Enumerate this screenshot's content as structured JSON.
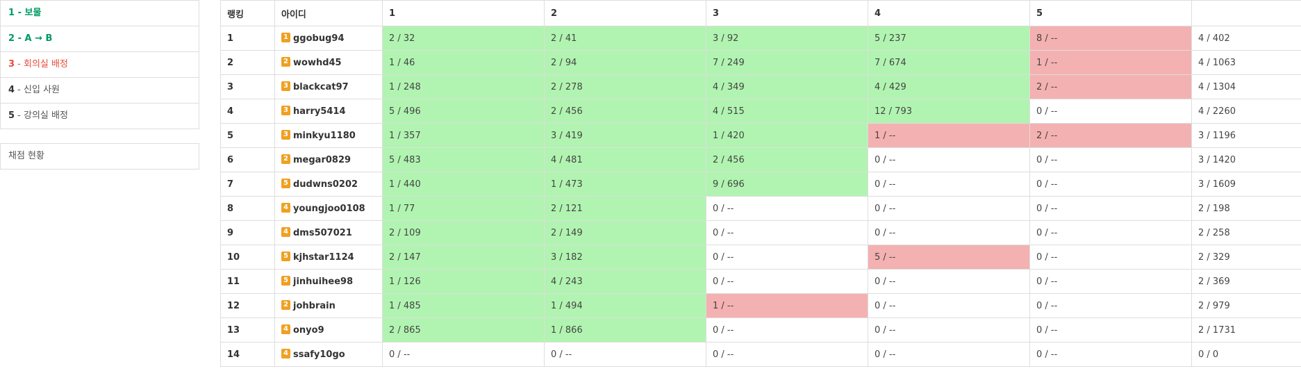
{
  "sidebar": {
    "problems": [
      {
        "num": "1",
        "title": "보물",
        "status": "solved"
      },
      {
        "num": "2",
        "title": "A → B",
        "status": "solved"
      },
      {
        "num": "3",
        "title": "회의실 배정",
        "status": "wrong"
      },
      {
        "num": "4",
        "title": "신입 사원",
        "status": "none"
      },
      {
        "num": "5",
        "title": "강의실 배정",
        "status": "none"
      }
    ],
    "grading_label": "채점 현황"
  },
  "board": {
    "headers": [
      "랭킹",
      "아이디",
      "1",
      "2",
      "3",
      "4",
      "5",
      ""
    ],
    "rows": [
      {
        "rank": "1",
        "tier": "1",
        "user": "ggobug94",
        "cells": [
          [
            "2 / 32",
            "ok"
          ],
          [
            "2 / 41",
            "ok"
          ],
          [
            "3 / 92",
            "ok"
          ],
          [
            "5 / 237",
            "ok"
          ],
          [
            "8 / --",
            "bad"
          ]
        ],
        "total": "4 / 402"
      },
      {
        "rank": "2",
        "tier": "2",
        "user": "wowhd45",
        "cells": [
          [
            "1 / 46",
            "ok"
          ],
          [
            "2 / 94",
            "ok"
          ],
          [
            "7 / 249",
            "ok"
          ],
          [
            "7 / 674",
            "ok"
          ],
          [
            "1 / --",
            "bad"
          ]
        ],
        "total": "4 / 1063"
      },
      {
        "rank": "3",
        "tier": "3",
        "user": "blackcat97",
        "cells": [
          [
            "1 / 248",
            "ok"
          ],
          [
            "2 / 278",
            "ok"
          ],
          [
            "4 / 349",
            "ok"
          ],
          [
            "4 / 429",
            "ok"
          ],
          [
            "2 / --",
            "bad"
          ]
        ],
        "total": "4 / 1304"
      },
      {
        "rank": "4",
        "tier": "3",
        "user": "harry5414",
        "cells": [
          [
            "5 / 496",
            "ok"
          ],
          [
            "2 / 456",
            "ok"
          ],
          [
            "4 / 515",
            "ok"
          ],
          [
            "12 / 793",
            "ok"
          ],
          [
            "0 / --",
            "none"
          ]
        ],
        "total": "4 / 2260"
      },
      {
        "rank": "5",
        "tier": "3",
        "user": "minkyu1180",
        "cells": [
          [
            "1 / 357",
            "ok"
          ],
          [
            "3 / 419",
            "ok"
          ],
          [
            "1 / 420",
            "ok"
          ],
          [
            "1 / --",
            "bad"
          ],
          [
            "2 / --",
            "bad"
          ]
        ],
        "total": "3 / 1196"
      },
      {
        "rank": "6",
        "tier": "2",
        "user": "megar0829",
        "cells": [
          [
            "5 / 483",
            "ok"
          ],
          [
            "4 / 481",
            "ok"
          ],
          [
            "2 / 456",
            "ok"
          ],
          [
            "0 / --",
            "none"
          ],
          [
            "0 / --",
            "none"
          ]
        ],
        "total": "3 / 1420"
      },
      {
        "rank": "7",
        "tier": "5",
        "user": "dudwns0202",
        "cells": [
          [
            "1 / 440",
            "ok"
          ],
          [
            "1 / 473",
            "ok"
          ],
          [
            "9 / 696",
            "ok"
          ],
          [
            "0 / --",
            "none"
          ],
          [
            "0 / --",
            "none"
          ]
        ],
        "total": "3 / 1609"
      },
      {
        "rank": "8",
        "tier": "4",
        "user": "youngjoo0108",
        "cells": [
          [
            "1 / 77",
            "ok"
          ],
          [
            "2 / 121",
            "ok"
          ],
          [
            "0 / --",
            "none"
          ],
          [
            "0 / --",
            "none"
          ],
          [
            "0 / --",
            "none"
          ]
        ],
        "total": "2 / 198"
      },
      {
        "rank": "9",
        "tier": "4",
        "user": "dms507021",
        "cells": [
          [
            "2 / 109",
            "ok"
          ],
          [
            "2 / 149",
            "ok"
          ],
          [
            "0 / --",
            "none"
          ],
          [
            "0 / --",
            "none"
          ],
          [
            "0 / --",
            "none"
          ]
        ],
        "total": "2 / 258"
      },
      {
        "rank": "10",
        "tier": "5",
        "user": "kjhstar1124",
        "cells": [
          [
            "2 / 147",
            "ok"
          ],
          [
            "3 / 182",
            "ok"
          ],
          [
            "0 / --",
            "none"
          ],
          [
            "5 / --",
            "bad"
          ],
          [
            "0 / --",
            "none"
          ]
        ],
        "total": "2 / 329"
      },
      {
        "rank": "11",
        "tier": "5",
        "user": "jinhuihee98",
        "cells": [
          [
            "1 / 126",
            "ok"
          ],
          [
            "4 / 243",
            "ok"
          ],
          [
            "0 / --",
            "none"
          ],
          [
            "0 / --",
            "none"
          ],
          [
            "0 / --",
            "none"
          ]
        ],
        "total": "2 / 369"
      },
      {
        "rank": "12",
        "tier": "2",
        "user": "johbrain",
        "cells": [
          [
            "1 / 485",
            "ok"
          ],
          [
            "1 / 494",
            "ok"
          ],
          [
            "1 / --",
            "bad"
          ],
          [
            "0 / --",
            "none"
          ],
          [
            "0 / --",
            "none"
          ]
        ],
        "total": "2 / 979"
      },
      {
        "rank": "13",
        "tier": "4",
        "user": "onyo9",
        "cells": [
          [
            "2 / 865",
            "ok"
          ],
          [
            "1 / 866",
            "ok"
          ],
          [
            "0 / --",
            "none"
          ],
          [
            "0 / --",
            "none"
          ],
          [
            "0 / --",
            "none"
          ]
        ],
        "total": "2 / 1731"
      },
      {
        "rank": "14",
        "tier": "4",
        "user": "ssafy10go",
        "cells": [
          [
            "0 / --",
            "none"
          ],
          [
            "0 / --",
            "none"
          ],
          [
            "0 / --",
            "none"
          ],
          [
            "0 / --",
            "none"
          ],
          [
            "0 / --",
            "none"
          ]
        ],
        "total": "0 / 0"
      }
    ]
  },
  "colors": {
    "solved_cell": "#b1f4b1",
    "wrong_cell": "#f4b1b1",
    "tier_badge": "#f0a020",
    "solved_text": "#009a61",
    "wrong_text": "#e74c3c"
  }
}
